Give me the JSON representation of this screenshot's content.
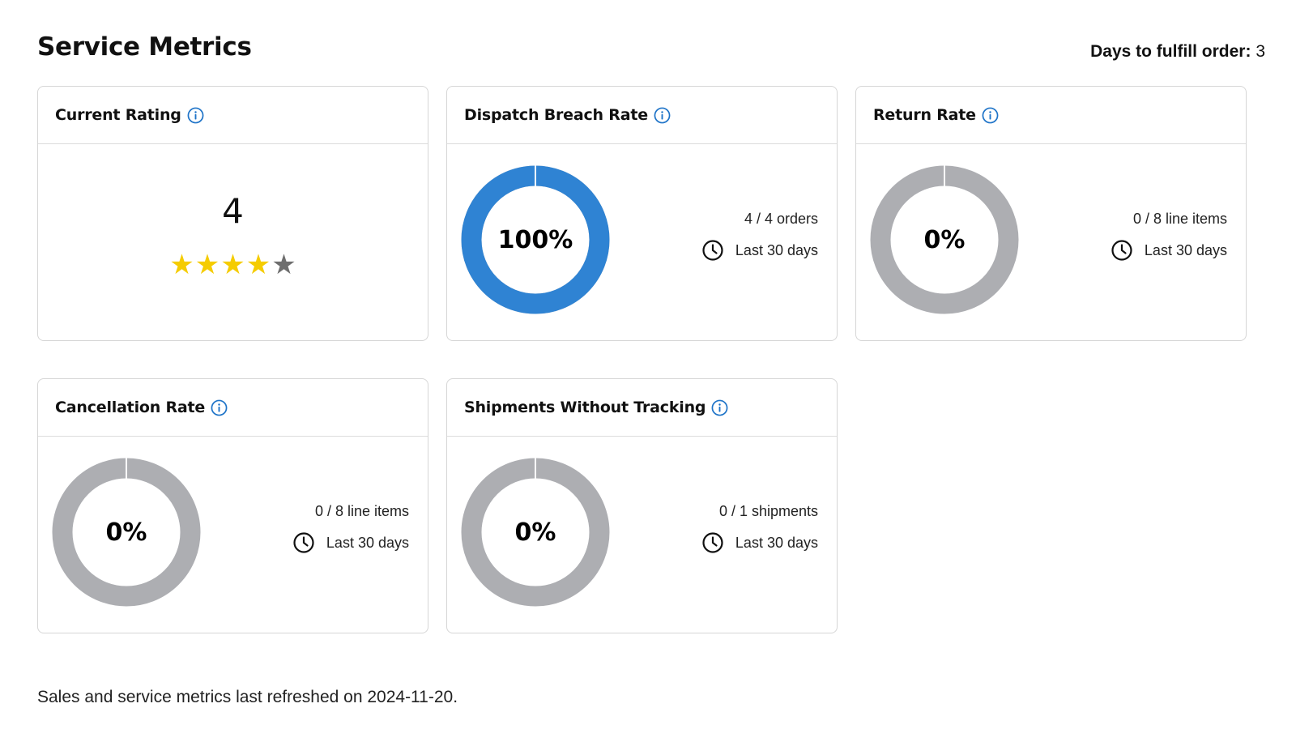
{
  "page": {
    "title": "Service Metrics",
    "days_to_fulfill_label": "Days to fulfill order:",
    "days_to_fulfill_value": "3",
    "footer": "Sales and service metrics last refreshed on 2024-11-20."
  },
  "colors": {
    "accent_blue": "#2f83d3",
    "ring_gray": "#adaeb2",
    "star_filled": "#f5cc00",
    "star_empty": "#6e6e6e",
    "info_icon": "#1f74c8"
  },
  "icons": {
    "info": "info-circle-icon",
    "clock": "clock-icon",
    "star": "star-icon"
  },
  "rating_card": {
    "title": "Current Rating",
    "value": "4",
    "stars_filled": 4,
    "stars_total": 5
  },
  "metric_cards": [
    {
      "title": "Dispatch Breach Rate",
      "percent_label": "100%",
      "fraction": 1.0,
      "count": "4 / 4 orders",
      "period": "Last 30 days"
    },
    {
      "title": "Return Rate",
      "percent_label": "0%",
      "fraction": 0,
      "count": "0 / 8 line items",
      "period": "Last 30 days"
    },
    {
      "title": "Cancellation Rate",
      "percent_label": "0%",
      "fraction": 0,
      "count": "0 / 8 line items",
      "period": "Last 30 days"
    },
    {
      "title": "Shipments Without Tracking",
      "percent_label": "0%",
      "fraction": 0,
      "count": "0 / 1 shipments",
      "period": "Last 30 days"
    }
  ]
}
